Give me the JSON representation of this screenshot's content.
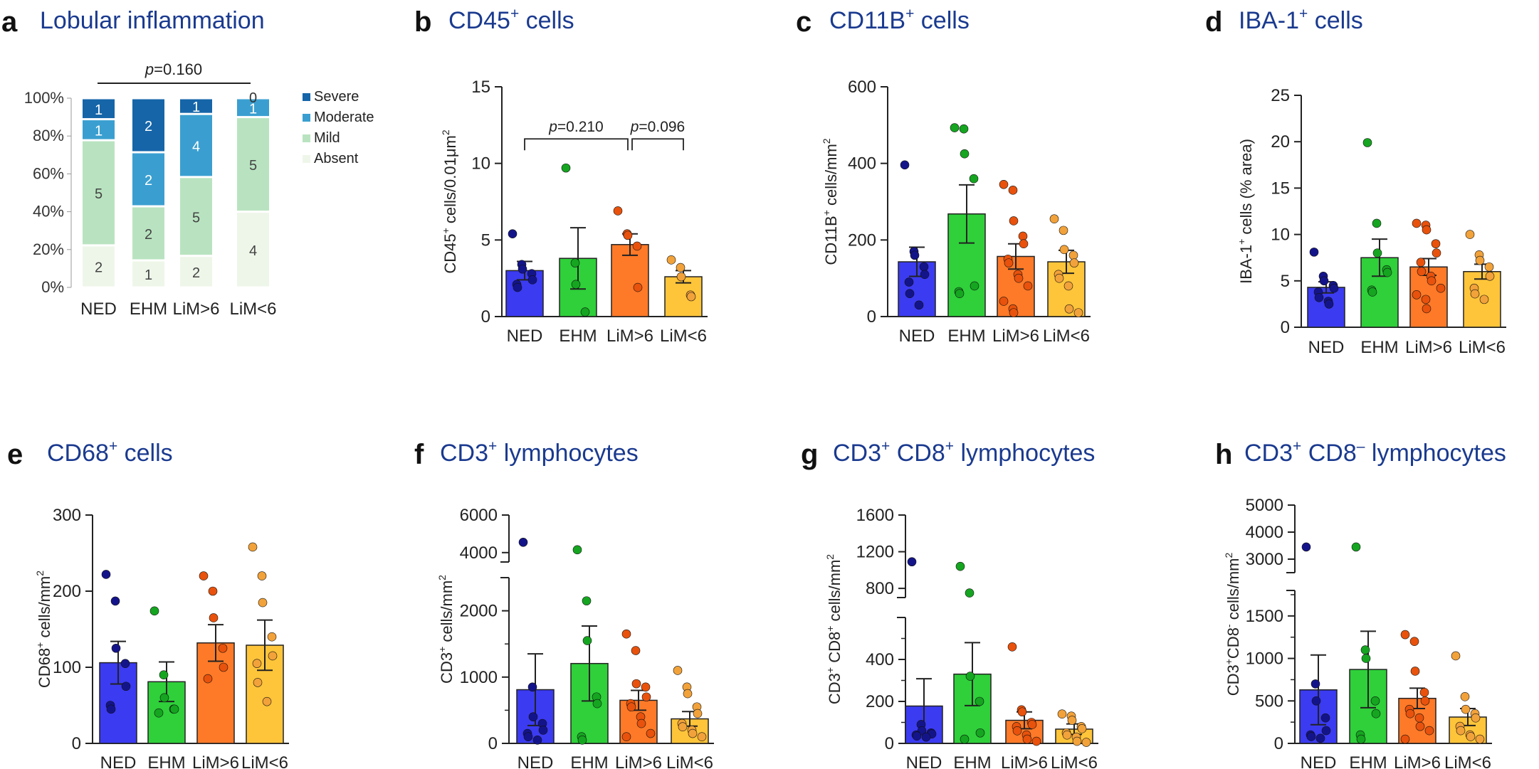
{
  "figure": {
    "colors": {
      "title": "#1a3a8f",
      "NED": "#3b3bf2",
      "NED_dot": "#14148a",
      "EHM": "#2fd03a",
      "EHM_dot": "#15a520",
      "LiM6p": "#ff7a28",
      "LiM6p_dot": "#e8520c",
      "LiM6m": "#ffc53a",
      "LiM6m_dot": "#f2a23a",
      "severe": "#1565a8",
      "moderate": "#3a9fd0",
      "mild": "#b9e3c0",
      "absent": "#eef6e9"
    }
  },
  "chart_data": [
    {
      "id": "a",
      "type": "bar",
      "stacked": true,
      "percent": true,
      "title": "Lobular inflammation",
      "categories": [
        "NED",
        "EHM",
        "LiM>6",
        "LiM<6"
      ],
      "yticks": [
        "0%",
        "20%",
        "40%",
        "60%",
        "80%",
        "100%"
      ],
      "series": [
        {
          "name": "Absent",
          "key": "absent",
          "values": [
            2,
            1,
            2,
            4
          ]
        },
        {
          "name": "Mild",
          "key": "mild",
          "values": [
            5,
            2,
            5,
            5
          ]
        },
        {
          "name": "Moderate",
          "key": "moderate",
          "values": [
            1,
            2,
            4,
            1
          ]
        },
        {
          "name": "Severe",
          "key": "severe",
          "values": [
            1,
            2,
            1,
            0
          ]
        }
      ],
      "legend": [
        "Severe",
        "Moderate",
        "Mild",
        "Absent"
      ],
      "pvalue": {
        "label": "p",
        "text": "=0.160",
        "from": 0,
        "to": 3
      }
    },
    {
      "id": "b",
      "type": "bar",
      "title": "CD45",
      "title_sup": "+",
      "title_rest": " cells",
      "ylabel": "CD45",
      "ylabel_sup": "+",
      "ylabel_rest": " cells/0.01μm",
      "ylabel_sup2": "2",
      "ylim": [
        0,
        15
      ],
      "ticks": [
        0,
        5,
        10,
        15
      ],
      "categories": [
        "NED",
        "EHM",
        "LiM>6",
        "LiM<6"
      ],
      "means": [
        3.0,
        3.8,
        4.7,
        2.6
      ],
      "sem": [
        0.6,
        2.0,
        0.7,
        0.4
      ],
      "points": [
        [
          5.4,
          3.4,
          3.1,
          2.8,
          2.4,
          2.1,
          1.9
        ],
        [
          9.7,
          3.5,
          2.1,
          0.3
        ],
        [
          6.9,
          5.4,
          5.3,
          4.6,
          1.9
        ],
        [
          3.7,
          3.2,
          2.6,
          1.4,
          1.3
        ]
      ],
      "pvalues": [
        {
          "label": "p",
          "text": "=0.210",
          "from": 0,
          "to": 2,
          "y": 11.6
        },
        {
          "label": "p",
          "text": "=0.096",
          "from": 2,
          "to": 3,
          "y": 11.6
        }
      ]
    },
    {
      "id": "c",
      "type": "bar",
      "title": "CD11B",
      "title_sup": "+",
      "title_rest": " cells",
      "ylabel": "CD11B",
      "ylabel_sup": "+",
      "ylabel_rest": " cells/mm",
      "ylabel_sup2": "2",
      "ylim": [
        0,
        600
      ],
      "ticks": [
        0,
        200,
        400,
        600
      ],
      "categories": [
        "NED",
        "EHM",
        "LiM>6",
        "LiM<6"
      ],
      "means": [
        143,
        268,
        157,
        143
      ],
      "sem": [
        38,
        76,
        33,
        30
      ],
      "points": [
        [
          396,
          170,
          160,
          130,
          110,
          90,
          60,
          30
        ],
        [
          493,
          490,
          425,
          360,
          80,
          65,
          60
        ],
        [
          345,
          330,
          250,
          210,
          190,
          150,
          140,
          110,
          100,
          80,
          40,
          20,
          10
        ],
        [
          255,
          225,
          175,
          160,
          140,
          110,
          100,
          80,
          20,
          10
        ]
      ]
    },
    {
      "id": "d",
      "type": "bar",
      "title": "IBA-1",
      "title_sup": "+",
      "title_rest": " cells",
      "ylabel": "IBA-1",
      "ylabel_sup": "+",
      "ylabel_rest": " cells (% area)",
      "ylabel_sup2": "",
      "ylim": [
        0,
        25
      ],
      "ticks": [
        0,
        5,
        10,
        15,
        20,
        25
      ],
      "categories": [
        "NED",
        "EHM",
        "LiM>6",
        "LiM<6"
      ],
      "means": [
        4.3,
        7.5,
        6.5,
        6.0
      ],
      "sem": [
        0.6,
        2.0,
        0.9,
        0.8
      ],
      "points": [
        [
          8.1,
          5.5,
          5.0,
          4.5,
          4.2,
          3.8,
          3.2,
          2.8,
          2.5
        ],
        [
          19.9,
          11.2,
          8.0,
          6.2,
          5.9,
          4.0,
          3.8
        ],
        [
          11.2,
          11.0,
          10.5,
          9.0,
          8.0,
          7.0,
          6.0,
          5.5,
          5.0,
          4.2,
          3.5,
          3.0,
          2.0
        ],
        [
          10.0,
          7.8,
          7.2,
          6.5,
          5.5,
          4.2,
          3.6,
          3.0
        ]
      ]
    },
    {
      "id": "e",
      "type": "bar",
      "title": "CD68",
      "title_sup": "+",
      "title_rest": " cells",
      "ylabel": "CD68",
      "ylabel_sup": "+",
      "ylabel_rest": " cells/mm",
      "ylabel_sup2": "2",
      "ylim": [
        0,
        300
      ],
      "ticks": [
        0,
        100,
        200,
        300
      ],
      "categories": [
        "NED",
        "EHM",
        "LiM>6",
        "LiM<6"
      ],
      "means": [
        106,
        81,
        132,
        129
      ],
      "sem": [
        28,
        26,
        24,
        33
      ],
      "points": [
        [
          222,
          187,
          125,
          105,
          75,
          50,
          45
        ],
        [
          174,
          90,
          60,
          45,
          45,
          40
        ],
        [
          220,
          200,
          165,
          125,
          100,
          85
        ],
        [
          258,
          220,
          185,
          140,
          115,
          105,
          80,
          55
        ]
      ]
    },
    {
      "id": "f",
      "type": "bar",
      "broken": true,
      "title": "CD3",
      "title_sup": "+",
      "title_rest": " lymphocytes",
      "ylabel": "CD3",
      "ylabel_sup": "+",
      "ylabel_rest": " cells/mm",
      "ylabel_sup2": "2",
      "lower": {
        "range": [
          0,
          2500
        ],
        "ticks": [
          0,
          1000,
          2000
        ]
      },
      "upper": {
        "range": [
          3500,
          6000
        ],
        "ticks": [
          4000,
          6000
        ]
      },
      "categories": [
        "NED",
        "EHM",
        "LiM>6",
        "LiM<6"
      ],
      "means": [
        810,
        1205,
        650,
        370
      ],
      "sem": [
        540,
        565,
        150,
        110
      ],
      "points": [
        [
          4550,
          850,
          400,
          300,
          200,
          150,
          100,
          50
        ],
        [
          4150,
          2150,
          1550,
          700,
          600,
          100,
          50
        ],
        [
          1650,
          1400,
          900,
          850,
          700,
          600,
          550,
          400,
          300,
          150,
          100
        ],
        [
          1100,
          850,
          750,
          550,
          450,
          300,
          250,
          200,
          150,
          100
        ]
      ]
    },
    {
      "id": "g",
      "type": "bar",
      "broken": true,
      "title": "CD3",
      "title_sup": "+",
      "title_rest": " CD8",
      "title_sup2": "+",
      "title_rest2": " lymphocytes",
      "ylabel": "CD3",
      "ylabel_sup": "+",
      "ylabel_rest": " CD8",
      "ylabel_sup2": "+",
      "ylabel_rest2": " cells/mm",
      "ylabel_sup3": "2",
      "lower": {
        "range": [
          0,
          600
        ],
        "ticks": [
          0,
          200,
          400
        ]
      },
      "upper": {
        "range": [
          700,
          1600
        ],
        "ticks": [
          800,
          1200,
          1600
        ]
      },
      "categories": [
        "NED",
        "EHM",
        "LiM>6",
        "LiM<6"
      ],
      "means": [
        178,
        330,
        110,
        68
      ],
      "sem": [
        130,
        150,
        40,
        25
      ],
      "points": [
        [
          1090,
          90,
          60,
          50,
          45,
          40,
          35,
          30
        ],
        [
          1040,
          750,
          320,
          200,
          50,
          20
        ],
        [
          460,
          160,
          150,
          100,
          90,
          80,
          60,
          40,
          20,
          10
        ],
        [
          140,
          130,
          110,
          80,
          70,
          50,
          40,
          30,
          10,
          5
        ]
      ]
    },
    {
      "id": "h",
      "type": "bar",
      "broken": true,
      "title": "CD3",
      "title_sup": "+",
      "title_rest": " CD8",
      "title_sup2": "–",
      "title_rest2": " lymphocytes",
      "ylabel": "CD3",
      "ylabel_sup": "+",
      "ylabel_rest": "CD8",
      "ylabel_sup2": "-",
      "ylabel_rest2": " cells/mm",
      "ylabel_sup3": "2",
      "lower": {
        "range": [
          0,
          1800
        ],
        "ticks": [
          0,
          500,
          1000,
          1500
        ]
      },
      "upper": {
        "range": [
          2500,
          5000
        ],
        "ticks": [
          3000,
          4000,
          5000
        ]
      },
      "categories": [
        "NED",
        "EHM",
        "LiM>6",
        "LiM<6"
      ],
      "means": [
        630,
        870,
        530,
        310
      ],
      "sem": [
        410,
        450,
        120,
        100
      ],
      "points": [
        [
          3450,
          700,
          500,
          300,
          150,
          100,
          80,
          60
        ],
        [
          3450,
          1100,
          1000,
          500,
          350,
          100,
          50
        ],
        [
          1280,
          1200,
          850,
          600,
          500,
          400,
          350,
          300,
          200,
          150,
          50
        ],
        [
          1030,
          550,
          400,
          350,
          300,
          200,
          150,
          100,
          80,
          50
        ]
      ]
    }
  ]
}
